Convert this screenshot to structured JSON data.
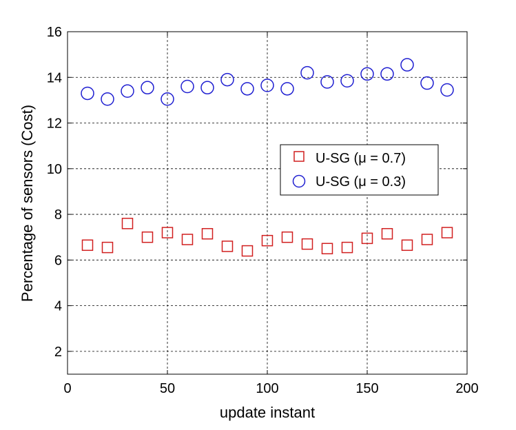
{
  "chart_data": {
    "type": "scatter",
    "title": "",
    "xlabel": "update instant",
    "ylabel": "Percentage of sensors (Cost)",
    "xlim": [
      0,
      200
    ],
    "ylim": [
      1,
      16
    ],
    "xticks": [
      0,
      50,
      100,
      150,
      200
    ],
    "yticks": [
      2,
      4,
      6,
      8,
      10,
      12,
      14,
      16
    ],
    "grid": true,
    "legend_position": "right-middle",
    "x": [
      10,
      20,
      30,
      40,
      50,
      60,
      70,
      80,
      90,
      100,
      110,
      120,
      130,
      140,
      150,
      160,
      170,
      180,
      190
    ],
    "series": [
      {
        "name": "U-SG (μ = 0.7)",
        "marker": "square",
        "color": "#d11f1f",
        "values": [
          6.65,
          6.55,
          7.6,
          7.0,
          7.2,
          6.9,
          7.15,
          6.6,
          6.4,
          6.85,
          7.0,
          6.7,
          6.5,
          6.55,
          6.95,
          7.15,
          6.65,
          6.9,
          7.2
        ]
      },
      {
        "name": "U-SG (μ = 0.3)",
        "marker": "circle",
        "color": "#1f1fd1",
        "values": [
          13.3,
          13.05,
          13.4,
          13.55,
          13.05,
          13.6,
          13.55,
          13.9,
          13.5,
          13.65,
          13.5,
          14.2,
          13.8,
          13.85,
          14.15,
          14.15,
          14.55,
          13.75,
          13.45
        ]
      }
    ]
  }
}
